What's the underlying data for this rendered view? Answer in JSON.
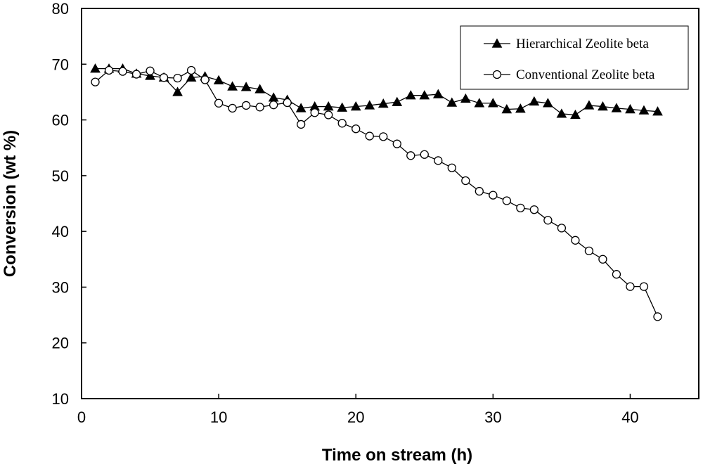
{
  "chart_data": {
    "type": "line",
    "title": "",
    "xlabel": "Time on stream (h)",
    "ylabel": "Conversion (wt %)",
    "xlim": [
      0,
      45
    ],
    "ylim": [
      10,
      80
    ],
    "xticks": [
      0,
      10,
      20,
      30,
      40
    ],
    "yticks": [
      10,
      20,
      30,
      40,
      50,
      60,
      70,
      80
    ],
    "grid": false,
    "legend_position": "top-right",
    "series": [
      {
        "name": "Hierarchical Zeolite beta",
        "marker": "filled-triangle",
        "color": "#000000",
        "x": [
          1,
          2,
          3,
          4,
          5,
          6,
          7,
          8,
          9,
          10,
          11,
          12,
          13,
          14,
          15,
          16,
          17,
          18,
          19,
          20,
          21,
          22,
          23,
          24,
          25,
          26,
          27,
          28,
          29,
          30,
          31,
          32,
          33,
          34,
          35,
          36,
          37,
          38,
          39,
          40,
          41,
          42
        ],
        "values": [
          69.2,
          69.2,
          69.2,
          68.3,
          67.9,
          67.6,
          65.0,
          67.6,
          67.8,
          67.1,
          66.0,
          65.9,
          65.5,
          64.0,
          63.6,
          62.1,
          62.4,
          62.4,
          62.2,
          62.4,
          62.6,
          62.9,
          63.2,
          64.4,
          64.4,
          64.6,
          63.1,
          63.8,
          63.0,
          63.0,
          61.9,
          62.0,
          63.3,
          63.0,
          61.1,
          60.9,
          62.6,
          62.4,
          62.1,
          61.9,
          61.7,
          61.5
        ]
      },
      {
        "name": "Conventional Zeolite beta",
        "marker": "open-circle",
        "color": "#000000",
        "x": [
          1,
          2,
          3,
          4,
          5,
          6,
          7,
          8,
          9,
          10,
          11,
          12,
          13,
          14,
          15,
          16,
          17,
          18,
          19,
          20,
          21,
          22,
          23,
          24,
          25,
          26,
          27,
          28,
          29,
          30,
          31,
          32,
          33,
          34,
          35,
          36,
          37,
          38,
          39,
          40,
          41,
          42
        ],
        "values": [
          66.8,
          68.9,
          68.7,
          68.2,
          68.8,
          67.6,
          67.5,
          68.9,
          67.2,
          63.0,
          62.1,
          62.6,
          62.3,
          62.7,
          63.1,
          59.2,
          61.3,
          60.9,
          59.4,
          58.4,
          57.1,
          57.0,
          55.7,
          53.6,
          53.8,
          52.7,
          51.4,
          49.1,
          47.2,
          46.5,
          45.5,
          44.2,
          43.9,
          42.0,
          40.6,
          38.4,
          36.5,
          35.0,
          32.3,
          30.1,
          30.1,
          24.7
        ]
      }
    ]
  }
}
